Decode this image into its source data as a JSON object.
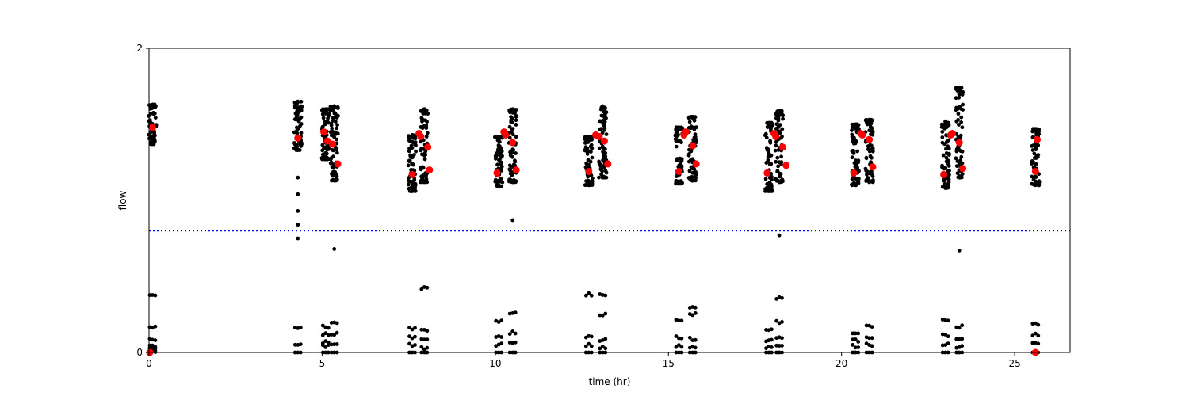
{
  "chart_data": {
    "type": "scatter",
    "title": "",
    "xlabel": "time (hr)",
    "ylabel": "flow",
    "xlim": [
      0,
      26.6
    ],
    "ylim": [
      0,
      2
    ],
    "xticks": [
      0,
      5,
      10,
      15,
      20,
      25
    ],
    "yticks": [
      0,
      2
    ],
    "grid": false,
    "reference_line": {
      "y": 0.8,
      "style": "dotted",
      "color": "#0000ff"
    },
    "colors": {
      "raw": "#000000",
      "mean": "#ff0000",
      "reference": "#0000ff"
    },
    "clusters": [
      {
        "x": 0.1,
        "high_min": 1.37,
        "high_max": 1.63,
        "mean": 1.48,
        "low": [
          0.38,
          0.17,
          0.08,
          0.04,
          0.03,
          0.02,
          0.01
        ]
      },
      {
        "x": 4.3,
        "high_min": 1.33,
        "high_max": 1.65,
        "mean": 1.4,
        "low": [
          0.16,
          0.05,
          0.0
        ],
        "extra": [
          1.15,
          1.04,
          0.93,
          0.84,
          0.75
        ]
      },
      {
        "x": 5.1,
        "high_min": 1.27,
        "high_max": 1.6,
        "mean": 1.43,
        "low": [
          0.17,
          0.12,
          0.07,
          0.04,
          0.0
        ]
      },
      {
        "x": 5.35,
        "high_min": 1.13,
        "high_max": 1.62,
        "mean": 1.37,
        "low": [
          0.19,
          0.12,
          0.05,
          0.0
        ],
        "extra": [
          0.68
        ]
      },
      {
        "x": 7.6,
        "high_min": 1.06,
        "high_max": 1.43,
        "mean": 1.18,
        "low": [
          0.16,
          0.1,
          0.05,
          0.0
        ]
      },
      {
        "x": 7.95,
        "high_min": 1.12,
        "high_max": 1.6,
        "mean": 1.38,
        "low": [
          0.42,
          0.14,
          0.08,
          0.03,
          0.0
        ]
      },
      {
        "x": 10.1,
        "high_min": 1.09,
        "high_max": 1.42,
        "mean": 1.18,
        "low": [
          0.21,
          0.11,
          0.05,
          0.0
        ]
      },
      {
        "x": 10.5,
        "high_min": 1.12,
        "high_max": 1.6,
        "mean": 1.39,
        "low": [
          0.26,
          0.13,
          0.06,
          0.0
        ],
        "extra": [
          0.87
        ]
      },
      {
        "x": 12.7,
        "high_min": 1.1,
        "high_max": 1.42,
        "mean": 1.19,
        "low": [
          0.38,
          0.1,
          0.05,
          0.0
        ]
      },
      {
        "x": 13.1,
        "high_min": 1.15,
        "high_max": 1.62,
        "mean": 1.37,
        "low": [
          0.38,
          0.25,
          0.08,
          0.03,
          0.0
        ]
      },
      {
        "x": 15.3,
        "high_min": 1.11,
        "high_max": 1.48,
        "mean": 1.19,
        "low": [
          0.21,
          0.1,
          0.04,
          0.0
        ]
      },
      {
        "x": 15.7,
        "high_min": 1.13,
        "high_max": 1.55,
        "mean": 1.36,
        "low": [
          0.29,
          0.25,
          0.09,
          0.03,
          0.0
        ]
      },
      {
        "x": 17.9,
        "high_min": 1.06,
        "high_max": 1.51,
        "mean": 1.18,
        "low": [
          0.15,
          0.08,
          0.03,
          0.0
        ]
      },
      {
        "x": 18.2,
        "high_min": 1.12,
        "high_max": 1.59,
        "mean": 1.36,
        "low": [
          0.36,
          0.2,
          0.09,
          0.04,
          0.0
        ],
        "extra": [
          0.77
        ]
      },
      {
        "x": 20.4,
        "high_min": 1.1,
        "high_max": 1.5,
        "mean": 1.18,
        "low": [
          0.12,
          0.08,
          0.04,
          0.0
        ]
      },
      {
        "x": 20.8,
        "high_min": 1.12,
        "high_max": 1.53,
        "mean": 1.38,
        "low": [
          0.17,
          0.1,
          0.05,
          0.0
        ]
      },
      {
        "x": 23.0,
        "high_min": 1.08,
        "high_max": 1.52,
        "mean": 1.17,
        "low": [
          0.21,
          0.11,
          0.05,
          0.0
        ]
      },
      {
        "x": 23.4,
        "high_min": 1.15,
        "high_max": 1.74,
        "mean": 1.38,
        "low": [
          0.17,
          0.08,
          0.04,
          0.0
        ],
        "extra": [
          0.67
        ]
      },
      {
        "x": 25.6,
        "high_min": 1.1,
        "high_max": 1.47,
        "mean": 1.18,
        "low": [
          0.19,
          0.12,
          0.06,
          0.0
        ]
      }
    ],
    "mean_points": [
      [
        0.1,
        1.48
      ],
      [
        4.3,
        1.41
      ],
      [
        5.05,
        1.45
      ],
      [
        5.15,
        1.39
      ],
      [
        5.3,
        1.37
      ],
      [
        5.45,
        1.24
      ],
      [
        7.6,
        1.17
      ],
      [
        7.8,
        1.44
      ],
      [
        7.85,
        1.42
      ],
      [
        8.05,
        1.35
      ],
      [
        8.1,
        1.2
      ],
      [
        10.05,
        1.18
      ],
      [
        10.25,
        1.45
      ],
      [
        10.3,
        1.43
      ],
      [
        10.5,
        1.38
      ],
      [
        10.6,
        1.2
      ],
      [
        12.7,
        1.19
      ],
      [
        12.9,
        1.43
      ],
      [
        13.0,
        1.42
      ],
      [
        13.15,
        1.39
      ],
      [
        13.25,
        1.24
      ],
      [
        15.3,
        1.19
      ],
      [
        15.45,
        1.43
      ],
      [
        15.5,
        1.45
      ],
      [
        15.7,
        1.36
      ],
      [
        15.8,
        1.24
      ],
      [
        17.85,
        1.18
      ],
      [
        18.05,
        1.44
      ],
      [
        18.1,
        1.42
      ],
      [
        18.3,
        1.35
      ],
      [
        18.4,
        1.23
      ],
      [
        20.35,
        1.18
      ],
      [
        20.55,
        1.44
      ],
      [
        20.6,
        1.43
      ],
      [
        20.8,
        1.4
      ],
      [
        20.9,
        1.22
      ],
      [
        22.95,
        1.17
      ],
      [
        23.15,
        1.43
      ],
      [
        23.2,
        1.44
      ],
      [
        23.4,
        1.38
      ],
      [
        23.5,
        1.21
      ],
      [
        25.6,
        1.19
      ],
      [
        25.65,
        1.4
      ],
      [
        0.02,
        0.0
      ],
      [
        25.6,
        0.0
      ]
    ]
  }
}
